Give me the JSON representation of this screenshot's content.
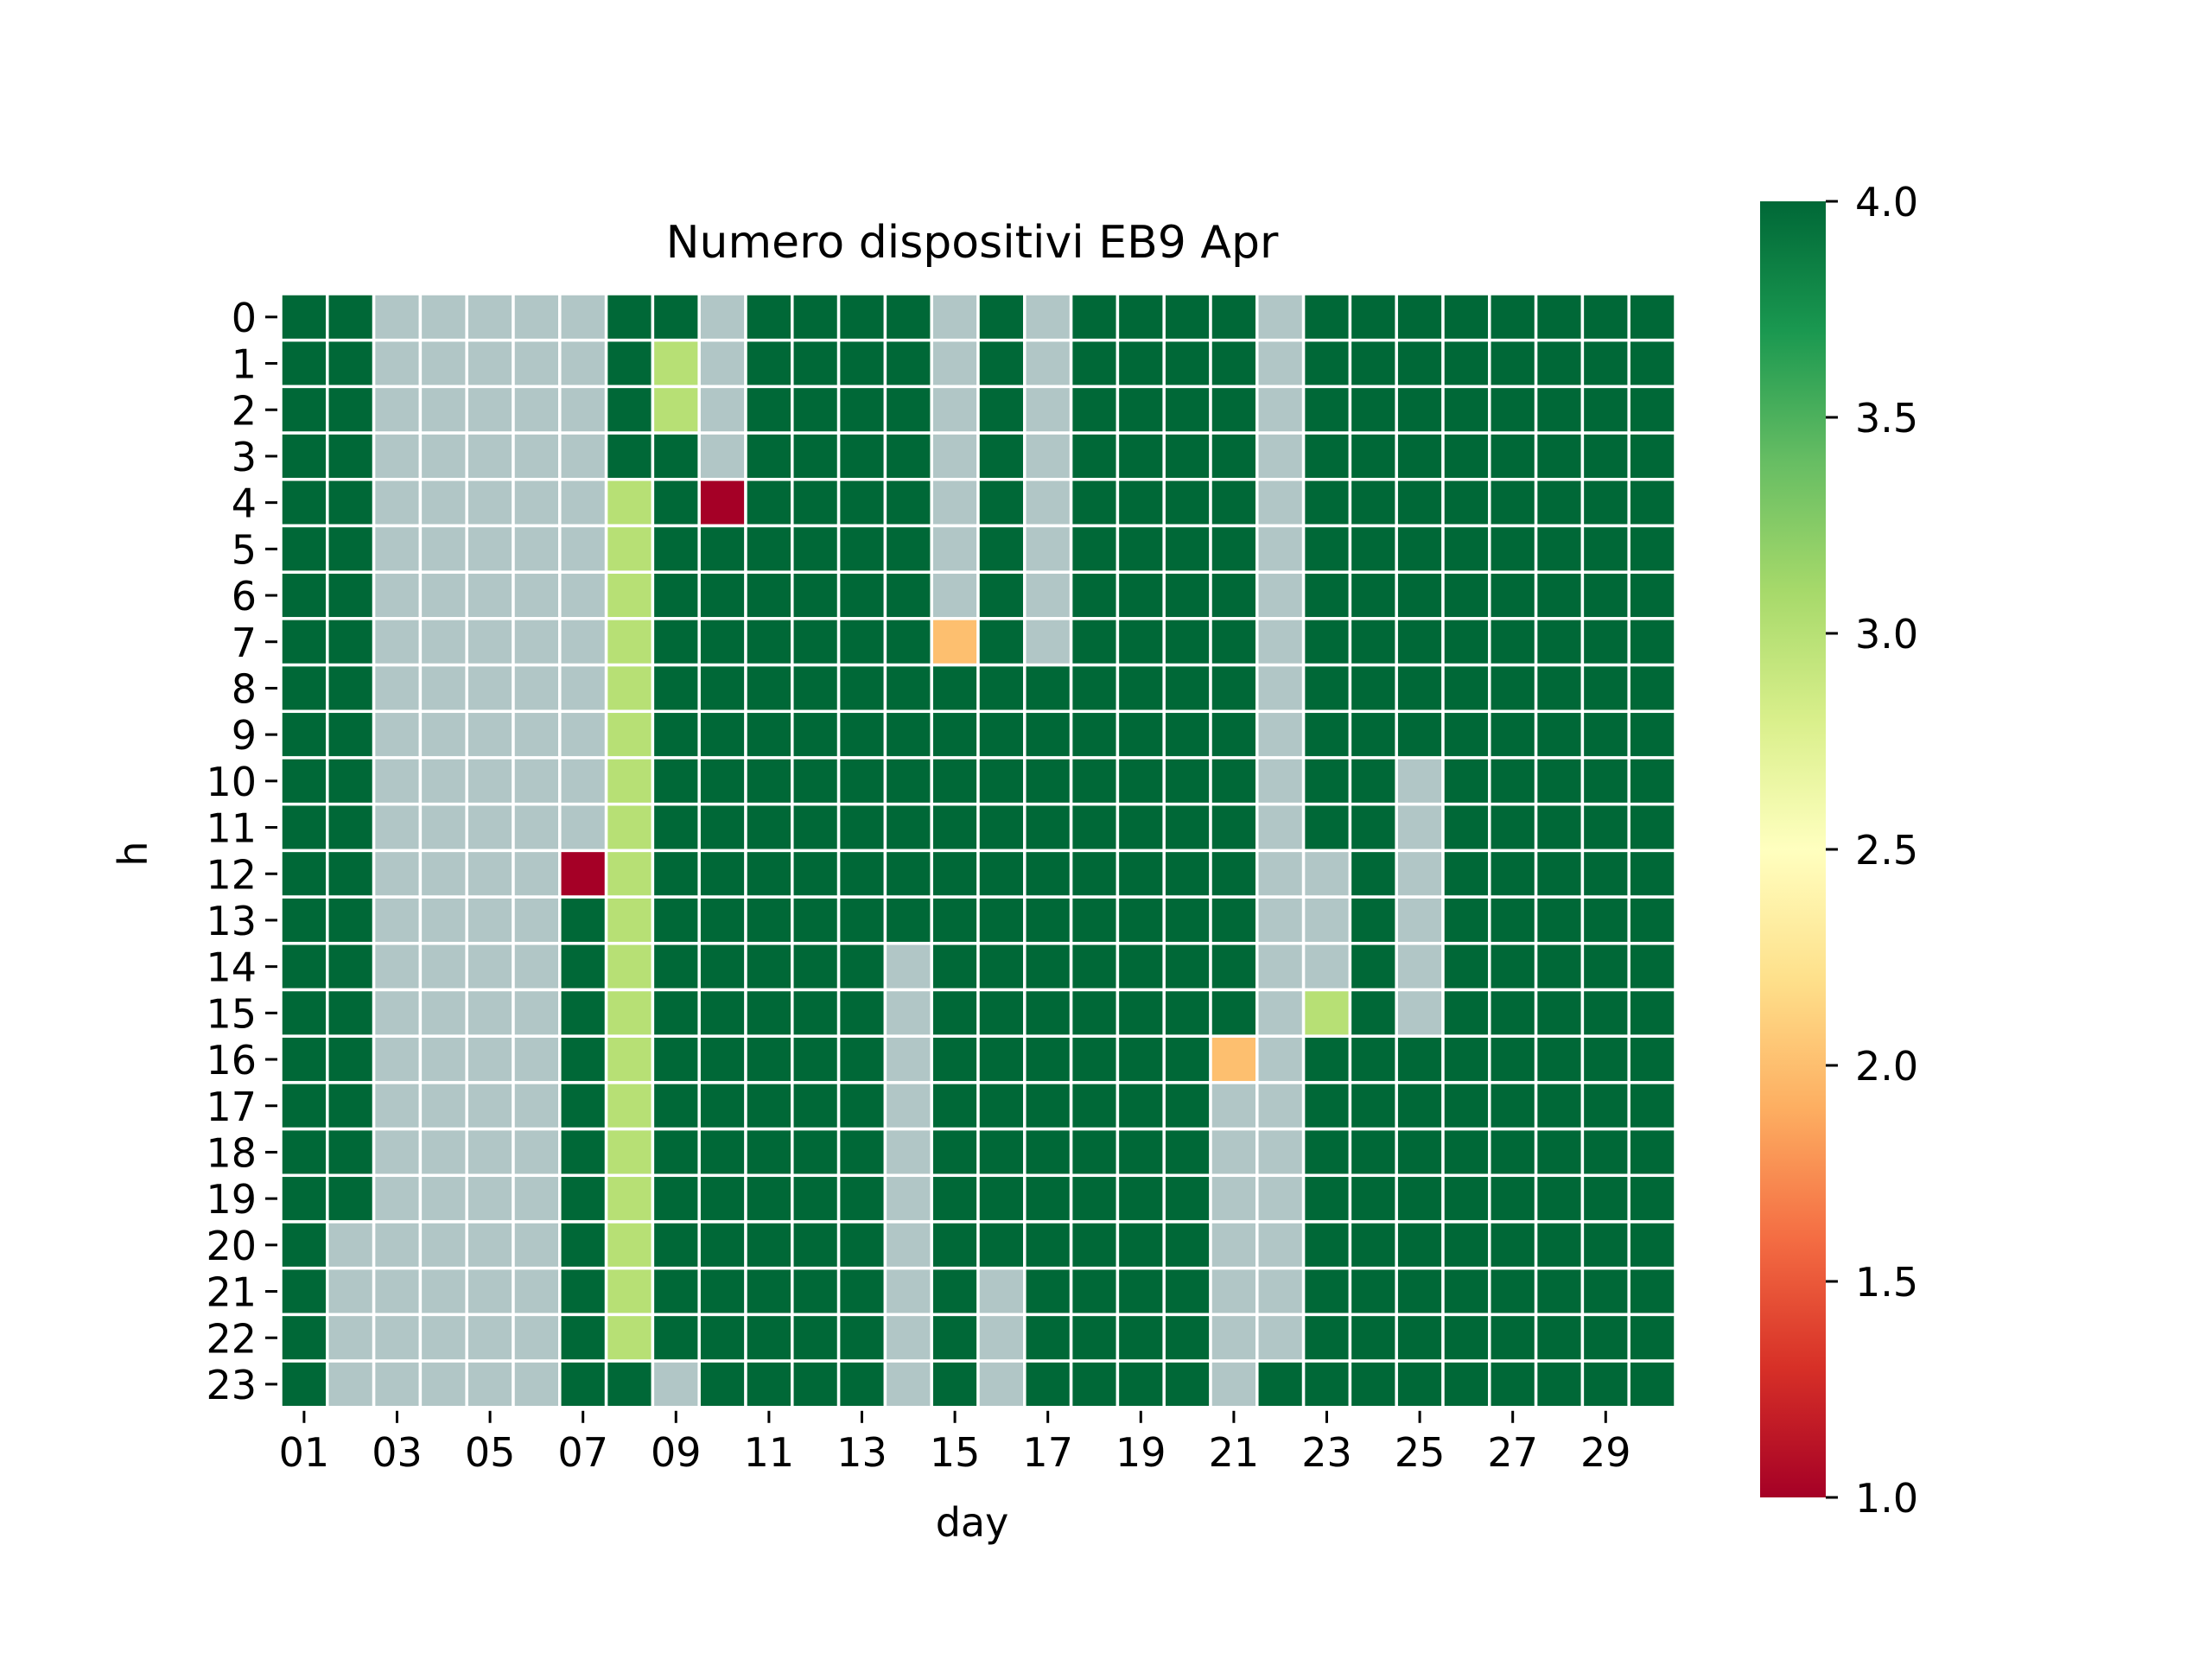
{
  "chart_data": {
    "type": "heatmap",
    "title": "Numero dispositivi EB9 Apr",
    "xlabel": "day",
    "ylabel": "h",
    "x": [
      "01",
      "02",
      "03",
      "04",
      "05",
      "06",
      "07",
      "08",
      "09",
      "10",
      "11",
      "12",
      "13",
      "14",
      "15",
      "16",
      "17",
      "18",
      "19",
      "20",
      "21",
      "22",
      "23",
      "24",
      "25",
      "26",
      "27",
      "28",
      "29",
      "30"
    ],
    "x_tick_labels": [
      "01",
      "03",
      "05",
      "07",
      "09",
      "11",
      "13",
      "15",
      "17",
      "19",
      "21",
      "23",
      "25",
      "27",
      "29"
    ],
    "y": [
      "0",
      "1",
      "2",
      "3",
      "4",
      "5",
      "6",
      "7",
      "8",
      "9",
      "10",
      "11",
      "12",
      "13",
      "14",
      "15",
      "16",
      "17",
      "18",
      "19",
      "20",
      "21",
      "22",
      "23"
    ],
    "missing_color": "#b1c6c6",
    "grid_line_color": "#ffffff",
    "colormap": "RdYlGn",
    "colorbar": {
      "range": [
        1.0,
        4.0
      ],
      "ticks": [
        "1.0",
        "1.5",
        "2.0",
        "2.5",
        "3.0",
        "3.5",
        "4.0"
      ],
      "stops": [
        "#a50026",
        "#d73027",
        "#f46d43",
        "#fdae61",
        "#fee08b",
        "#ffffbf",
        "#d9ef8b",
        "#a6d96a",
        "#66bd63",
        "#1a9850",
        "#006837"
      ]
    },
    "values": [
      [
        4,
        4,
        null,
        null,
        null,
        null,
        null,
        4,
        4,
        null,
        4,
        4,
        4,
        4,
        null,
        4,
        null,
        4,
        4,
        4,
        4,
        null,
        4,
        4,
        4,
        4,
        4,
        4,
        4,
        4
      ],
      [
        4,
        4,
        null,
        null,
        null,
        null,
        null,
        4,
        3,
        null,
        4,
        4,
        4,
        4,
        null,
        4,
        null,
        4,
        4,
        4,
        4,
        null,
        4,
        4,
        4,
        4,
        4,
        4,
        4,
        4
      ],
      [
        4,
        4,
        null,
        null,
        null,
        null,
        null,
        4,
        3,
        null,
        4,
        4,
        4,
        4,
        null,
        4,
        null,
        4,
        4,
        4,
        4,
        null,
        4,
        4,
        4,
        4,
        4,
        4,
        4,
        4
      ],
      [
        4,
        4,
        null,
        null,
        null,
        null,
        null,
        4,
        4,
        null,
        4,
        4,
        4,
        4,
        null,
        4,
        null,
        4,
        4,
        4,
        4,
        null,
        4,
        4,
        4,
        4,
        4,
        4,
        4,
        4
      ],
      [
        4,
        4,
        null,
        null,
        null,
        null,
        null,
        3,
        4,
        1,
        4,
        4,
        4,
        4,
        null,
        4,
        null,
        4,
        4,
        4,
        4,
        null,
        4,
        4,
        4,
        4,
        4,
        4,
        4,
        4
      ],
      [
        4,
        4,
        null,
        null,
        null,
        null,
        null,
        3,
        4,
        4,
        4,
        4,
        4,
        4,
        null,
        4,
        null,
        4,
        4,
        4,
        4,
        null,
        4,
        4,
        4,
        4,
        4,
        4,
        4,
        4
      ],
      [
        4,
        4,
        null,
        null,
        null,
        null,
        null,
        3,
        4,
        4,
        4,
        4,
        4,
        4,
        null,
        4,
        null,
        4,
        4,
        4,
        4,
        null,
        4,
        4,
        4,
        4,
        4,
        4,
        4,
        4
      ],
      [
        4,
        4,
        null,
        null,
        null,
        null,
        null,
        3,
        4,
        4,
        4,
        4,
        4,
        4,
        2,
        4,
        null,
        4,
        4,
        4,
        4,
        null,
        4,
        4,
        4,
        4,
        4,
        4,
        4,
        4
      ],
      [
        4,
        4,
        null,
        null,
        null,
        null,
        null,
        3,
        4,
        4,
        4,
        4,
        4,
        4,
        4,
        4,
        4,
        4,
        4,
        4,
        4,
        null,
        4,
        4,
        4,
        4,
        4,
        4,
        4,
        4
      ],
      [
        4,
        4,
        null,
        null,
        null,
        null,
        null,
        3,
        4,
        4,
        4,
        4,
        4,
        4,
        4,
        4,
        4,
        4,
        4,
        4,
        4,
        null,
        4,
        4,
        4,
        4,
        4,
        4,
        4,
        4
      ],
      [
        4,
        4,
        null,
        null,
        null,
        null,
        null,
        3,
        4,
        4,
        4,
        4,
        4,
        4,
        4,
        4,
        4,
        4,
        4,
        4,
        4,
        null,
        4,
        4,
        null,
        4,
        4,
        4,
        4,
        4
      ],
      [
        4,
        4,
        null,
        null,
        null,
        null,
        null,
        3,
        4,
        4,
        4,
        4,
        4,
        4,
        4,
        4,
        4,
        4,
        4,
        4,
        4,
        null,
        4,
        4,
        null,
        4,
        4,
        4,
        4,
        4
      ],
      [
        4,
        4,
        null,
        null,
        null,
        null,
        1,
        3,
        4,
        4,
        4,
        4,
        4,
        4,
        4,
        4,
        4,
        4,
        4,
        4,
        4,
        null,
        null,
        4,
        null,
        4,
        4,
        4,
        4,
        4
      ],
      [
        4,
        4,
        null,
        null,
        null,
        null,
        4,
        3,
        4,
        4,
        4,
        4,
        4,
        4,
        4,
        4,
        4,
        4,
        4,
        4,
        4,
        null,
        null,
        4,
        null,
        4,
        4,
        4,
        4,
        4
      ],
      [
        4,
        4,
        null,
        null,
        null,
        null,
        4,
        3,
        4,
        4,
        4,
        4,
        4,
        null,
        4,
        4,
        4,
        4,
        4,
        4,
        4,
        null,
        null,
        4,
        null,
        4,
        4,
        4,
        4,
        4
      ],
      [
        4,
        4,
        null,
        null,
        null,
        null,
        4,
        3,
        4,
        4,
        4,
        4,
        4,
        null,
        4,
        4,
        4,
        4,
        4,
        4,
        4,
        null,
        3,
        4,
        null,
        4,
        4,
        4,
        4,
        4
      ],
      [
        4,
        4,
        null,
        null,
        null,
        null,
        4,
        3,
        4,
        4,
        4,
        4,
        4,
        null,
        4,
        4,
        4,
        4,
        4,
        4,
        2,
        null,
        4,
        4,
        4,
        4,
        4,
        4,
        4,
        4
      ],
      [
        4,
        4,
        null,
        null,
        null,
        null,
        4,
        3,
        4,
        4,
        4,
        4,
        4,
        null,
        4,
        4,
        4,
        4,
        4,
        4,
        null,
        null,
        4,
        4,
        4,
        4,
        4,
        4,
        4,
        4
      ],
      [
        4,
        4,
        null,
        null,
        null,
        null,
        4,
        3,
        4,
        4,
        4,
        4,
        4,
        null,
        4,
        4,
        4,
        4,
        4,
        4,
        null,
        null,
        4,
        4,
        4,
        4,
        4,
        4,
        4,
        4
      ],
      [
        4,
        4,
        null,
        null,
        null,
        null,
        4,
        3,
        4,
        4,
        4,
        4,
        4,
        null,
        4,
        4,
        4,
        4,
        4,
        4,
        null,
        null,
        4,
        4,
        4,
        4,
        4,
        4,
        4,
        4
      ],
      [
        4,
        null,
        null,
        null,
        null,
        null,
        4,
        3,
        4,
        4,
        4,
        4,
        4,
        null,
        4,
        4,
        4,
        4,
        4,
        4,
        null,
        null,
        4,
        4,
        4,
        4,
        4,
        4,
        4,
        4
      ],
      [
        4,
        null,
        null,
        null,
        null,
        null,
        4,
        3,
        4,
        4,
        4,
        4,
        4,
        null,
        4,
        null,
        4,
        4,
        4,
        4,
        null,
        null,
        4,
        4,
        4,
        4,
        4,
        4,
        4,
        4
      ],
      [
        4,
        null,
        null,
        null,
        null,
        null,
        4,
        3,
        4,
        4,
        4,
        4,
        4,
        null,
        4,
        null,
        4,
        4,
        4,
        4,
        null,
        null,
        4,
        4,
        4,
        4,
        4,
        4,
        4,
        4
      ],
      [
        4,
        null,
        null,
        null,
        null,
        null,
        4,
        4,
        null,
        4,
        4,
        4,
        4,
        null,
        4,
        null,
        4,
        4,
        4,
        4,
        null,
        4,
        4,
        4,
        4,
        4,
        4,
        4,
        4,
        4
      ]
    ]
  }
}
